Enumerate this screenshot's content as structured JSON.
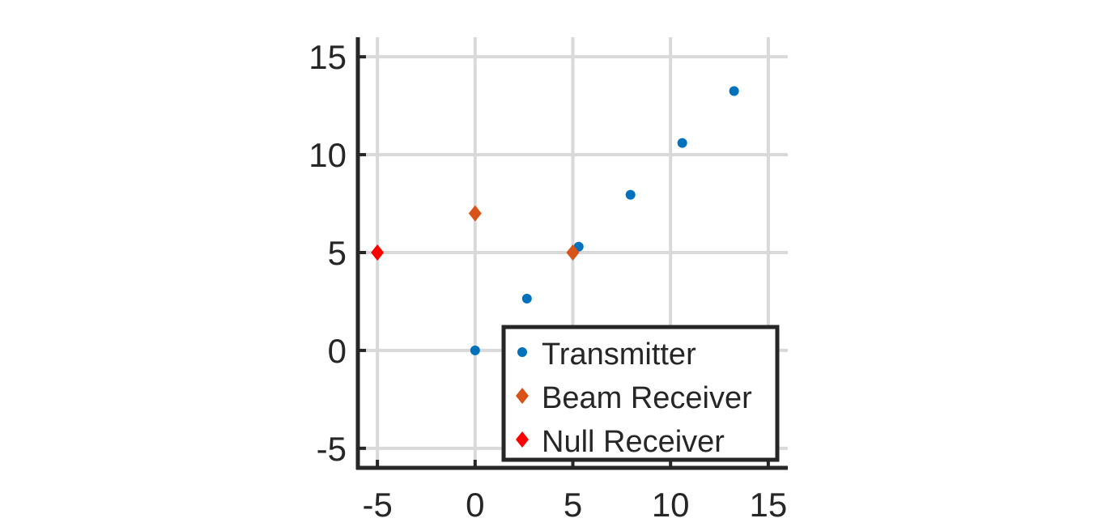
{
  "chart_data": {
    "type": "scatter",
    "title": "",
    "xlabel": "",
    "ylabel": "",
    "xlim": [
      -6,
      16
    ],
    "ylim": [
      -6,
      16
    ],
    "xticks": [
      -5,
      0,
      5,
      10,
      15
    ],
    "yticks": [
      -5,
      0,
      5,
      10,
      15
    ],
    "x_tick_labels": [
      "-5",
      "0",
      "5",
      "10",
      "15"
    ],
    "y_tick_labels": [
      "-5",
      "0",
      "5",
      "10",
      "15"
    ],
    "grid": true,
    "legend_position": "bottom-right",
    "series": [
      {
        "name": "Transmitter",
        "marker": "circle",
        "color": "#0072BD",
        "points": [
          [
            0,
            0
          ],
          [
            2.65,
            2.65
          ],
          [
            5.3,
            5.3
          ],
          [
            7.95,
            7.95
          ],
          [
            10.6,
            10.6
          ],
          [
            13.25,
            13.25
          ]
        ]
      },
      {
        "name": "Beam Receiver",
        "marker": "diamond",
        "color": "#D95319",
        "points": [
          [
            0,
            7
          ],
          [
            5,
            5
          ]
        ]
      },
      {
        "name": "Null Receiver",
        "marker": "diamond",
        "color": "#FF0000",
        "points": [
          [
            -5,
            5
          ]
        ]
      }
    ],
    "colors": {
      "axis": "#262626",
      "grid": "#d9d9d9"
    }
  }
}
